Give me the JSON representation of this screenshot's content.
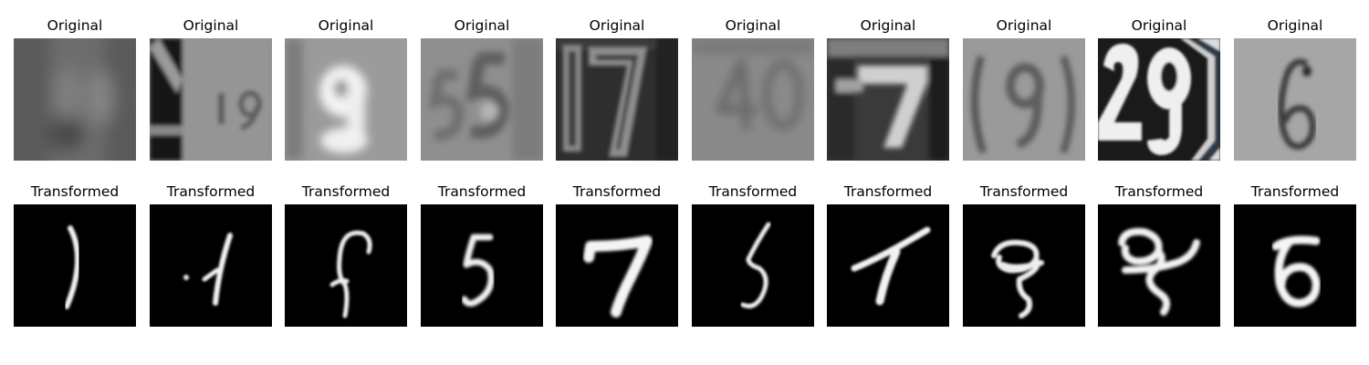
{
  "rows": [
    {
      "row": "original",
      "panels": [
        {
          "title": "Original",
          "depicts": "blurry gray digits"
        },
        {
          "title": "Original",
          "depicts": "house number 19"
        },
        {
          "title": "Original",
          "depicts": "digit 9"
        },
        {
          "title": "Original",
          "depicts": "digits 55"
        },
        {
          "title": "Original",
          "depicts": "digits 17"
        },
        {
          "title": "Original",
          "depicts": "digits 40"
        },
        {
          "title": "Original",
          "depicts": "digit 7"
        },
        {
          "title": "Original",
          "depicts": "digit 9"
        },
        {
          "title": "Original",
          "depicts": "digits 29"
        },
        {
          "title": "Original",
          "depicts": "digit 6"
        }
      ]
    },
    {
      "row": "transformed",
      "panels": [
        {
          "title": "Transformed",
          "depicts": "handwritten 1"
        },
        {
          "title": "Transformed",
          "depicts": "handwritten 1"
        },
        {
          "title": "Transformed",
          "depicts": "handwritten f-like stroke"
        },
        {
          "title": "Transformed",
          "depicts": "handwritten 5"
        },
        {
          "title": "Transformed",
          "depicts": "handwritten 7"
        },
        {
          "title": "Transformed",
          "depicts": "handwritten 5"
        },
        {
          "title": "Transformed",
          "depicts": "handwritten 7"
        },
        {
          "title": "Transformed",
          "depicts": "handwritten 9-like glyph"
        },
        {
          "title": "Transformed",
          "depicts": "handwritten 9-like glyph"
        },
        {
          "title": "Transformed",
          "depicts": "handwritten 6"
        }
      ]
    }
  ],
  "colors": {
    "background": "#ffffff",
    "transformed_background": "#000000",
    "stroke": "#f2f2f2"
  }
}
